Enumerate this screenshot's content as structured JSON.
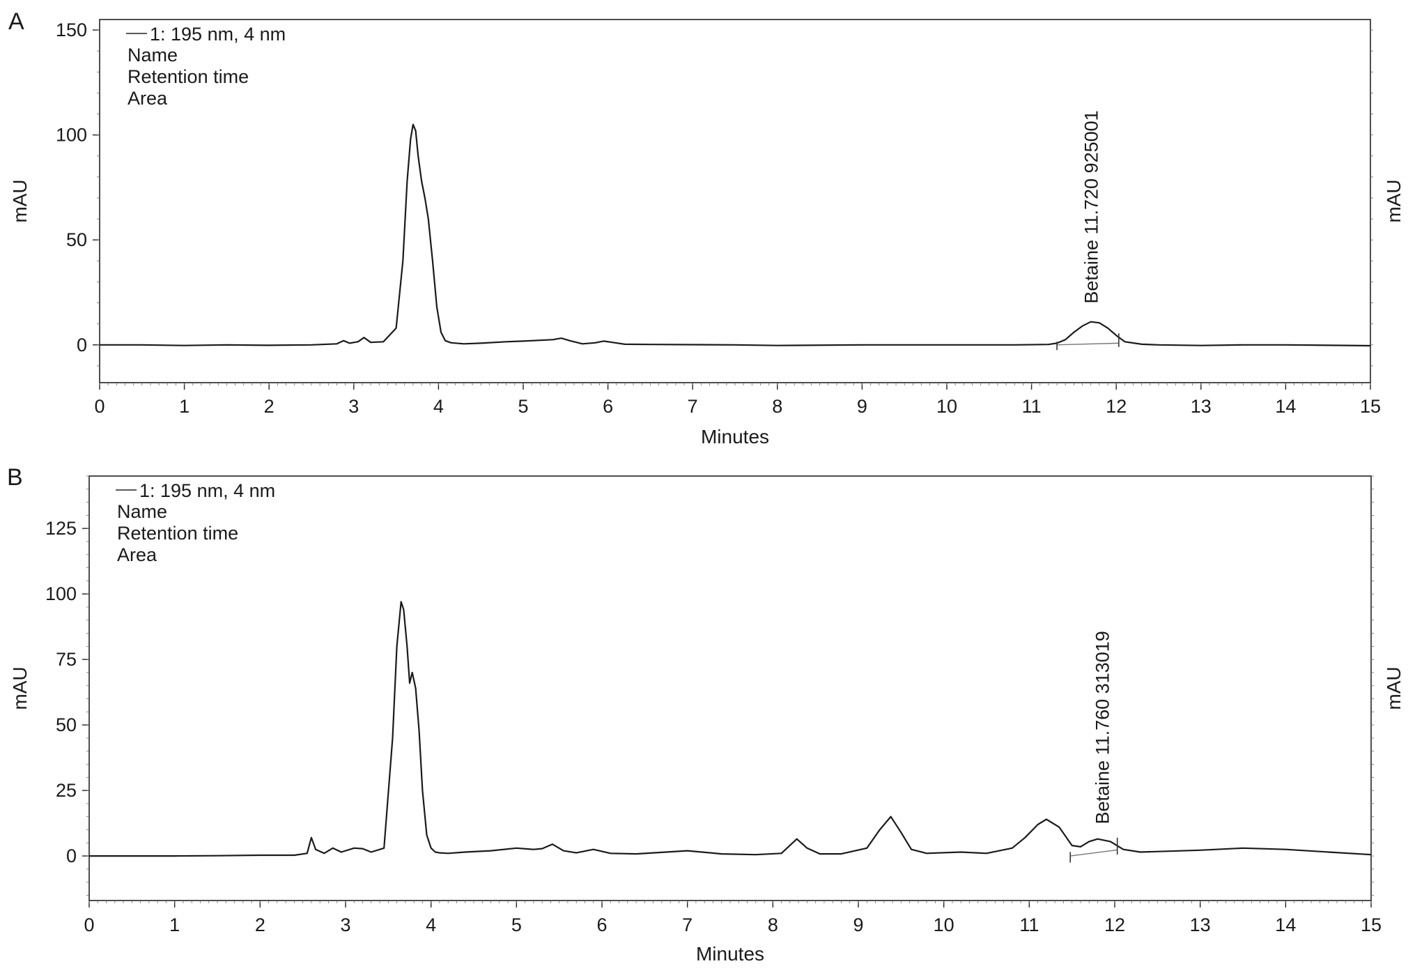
{
  "chart_data": [
    {
      "panel_label": "A",
      "type": "line",
      "xlabel": "Minutes",
      "ylabel": "mAU",
      "ylabel_right": "mAU",
      "xlim": [
        0,
        15
      ],
      "ylim": [
        -18,
        155
      ],
      "xticks": [
        0,
        1,
        2,
        3,
        4,
        5,
        6,
        7,
        8,
        9,
        10,
        11,
        12,
        13,
        14,
        15
      ],
      "yticks": [
        0,
        50,
        100,
        150
      ],
      "legend": {
        "placement": "top-left",
        "series_label": "1: 195 nm, 4 nm",
        "lines": [
          "Name",
          "Retention time",
          "Area"
        ]
      },
      "peak_annotation": {
        "text": "Betaine 11.720 925001",
        "compound": "Betaine",
        "retention_time": 11.72,
        "area": 925001,
        "x": 11.7,
        "y_anchor": 17,
        "integration": {
          "start": 11.3,
          "end": 12.03,
          "base_start": -2.5,
          "base_end": 0.5
        }
      },
      "series": [
        {
          "x": [
            0,
            0.5,
            1.0,
            1.5,
            2.0,
            2.5,
            2.8,
            2.88,
            2.95,
            3.05,
            3.12,
            3.2,
            3.35,
            3.5,
            3.58,
            3.63,
            3.67,
            3.7,
            3.73,
            3.76,
            3.8,
            3.84,
            3.88,
            3.93,
            3.98,
            4.03,
            4.08,
            4.15,
            4.3,
            4.5,
            4.8,
            5.0,
            5.2,
            5.35,
            5.45,
            5.55,
            5.7,
            5.85,
            5.95,
            6.05,
            6.2,
            6.5,
            7.0,
            7.5,
            8.0,
            9.0,
            10.0,
            10.8,
            11.2,
            11.3,
            11.4,
            11.5,
            11.6,
            11.7,
            11.8,
            11.9,
            12.0,
            12.1,
            12.3,
            12.5,
            13.0,
            13.5,
            14.0,
            14.5,
            15.0
          ],
          "y": [
            0,
            0,
            -0.3,
            0,
            -0.2,
            0,
            0.5,
            2,
            0.8,
            1.5,
            3.5,
            1.2,
            1.5,
            8,
            40,
            78,
            98,
            105,
            102,
            90,
            78,
            70,
            60,
            40,
            18,
            6,
            2,
            1,
            0.5,
            0.8,
            1.5,
            1.8,
            2.2,
            2.5,
            3.2,
            2,
            0.5,
            1,
            1.8,
            1.2,
            0.3,
            0.2,
            0.1,
            0,
            -0.3,
            0,
            0,
            0,
            0.2,
            0.8,
            2.5,
            6,
            9,
            11,
            10.5,
            8,
            4.5,
            1.5,
            0.3,
            0,
            -0.3,
            0,
            0,
            -0.2,
            -0.4
          ]
        }
      ]
    },
    {
      "panel_label": "B",
      "type": "line",
      "xlabel": "Minutes",
      "ylabel": "mAU",
      "ylabel_right": "mAU",
      "xlim": [
        0,
        15
      ],
      "ylim": [
        -17,
        145
      ],
      "xticks": [
        0,
        1,
        2,
        3,
        4,
        5,
        6,
        7,
        8,
        9,
        10,
        11,
        12,
        13,
        14,
        15
      ],
      "yticks": [
        0,
        25,
        50,
        75,
        100,
        125
      ],
      "legend": {
        "placement": "top-left",
        "series_label": "1: 195 nm, 4 nm",
        "lines": [
          "Name",
          "Retention time",
          "Area"
        ]
      },
      "peak_annotation": {
        "text": "Betaine 11.760 313019",
        "compound": "Betaine",
        "retention_time": 11.76,
        "area": 313019,
        "x": 11.85,
        "y_anchor": 10,
        "integration": {
          "start": 11.48,
          "end": 12.03,
          "base_start": -2.5,
          "base_end": 2
        }
      },
      "series": [
        {
          "x": [
            0,
            0.5,
            1.0,
            1.5,
            2.0,
            2.4,
            2.55,
            2.6,
            2.65,
            2.75,
            2.85,
            2.95,
            3.1,
            3.2,
            3.3,
            3.45,
            3.55,
            3.6,
            3.65,
            3.68,
            3.72,
            3.75,
            3.78,
            3.82,
            3.86,
            3.9,
            3.95,
            4.0,
            4.05,
            4.1,
            4.2,
            4.4,
            4.7,
            5.0,
            5.2,
            5.3,
            5.42,
            5.55,
            5.7,
            5.9,
            6.1,
            6.4,
            7.0,
            7.4,
            7.8,
            8.1,
            8.28,
            8.4,
            8.55,
            8.8,
            9.1,
            9.25,
            9.38,
            9.5,
            9.62,
            9.8,
            10.2,
            10.5,
            10.8,
            10.95,
            11.1,
            11.2,
            11.35,
            11.5,
            11.6,
            11.7,
            11.8,
            11.95,
            12.1,
            12.3,
            13.0,
            13.5,
            14.0,
            14.5,
            15.0
          ],
          "y": [
            0,
            0,
            0,
            0.1,
            0.3,
            0.3,
            1,
            7,
            2.5,
            1,
            3,
            1.5,
            3,
            2.8,
            1.5,
            3,
            45,
            80,
            97,
            94,
            80,
            66,
            70,
            64,
            48,
            25,
            8,
            3,
            1.5,
            1.2,
            1,
            1.5,
            2,
            3,
            2.5,
            2.8,
            4.5,
            2,
            1.2,
            2.5,
            1,
            0.8,
            2,
            0.8,
            0.5,
            1,
            6.5,
            3,
            0.8,
            0.8,
            3,
            10,
            15,
            9,
            2.5,
            1,
            1.5,
            1,
            3,
            7,
            12,
            14,
            11,
            4,
            3.5,
            5.5,
            6.5,
            5.5,
            2.5,
            1.5,
            2.2,
            3,
            2.5,
            1.5,
            0.5
          ]
        }
      ]
    }
  ]
}
